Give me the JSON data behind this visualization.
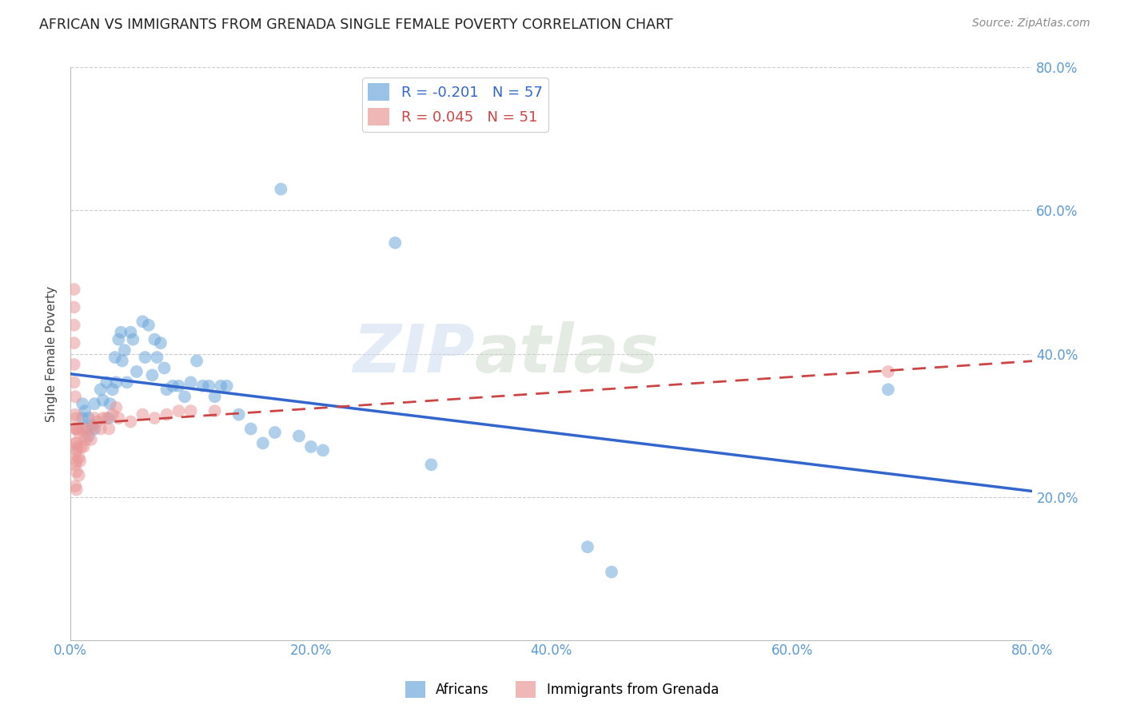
{
  "title": "AFRICAN VS IMMIGRANTS FROM GRENADA SINGLE FEMALE POVERTY CORRELATION CHART",
  "source": "Source: ZipAtlas.com",
  "ylabel": "Single Female Poverty",
  "xlim": [
    0.0,
    0.8
  ],
  "ylim": [
    0.0,
    0.8
  ],
  "xtick_labels": [
    "0.0%",
    "20.0%",
    "40.0%",
    "60.0%",
    "80.0%"
  ],
  "xtick_vals": [
    0.0,
    0.2,
    0.4,
    0.6,
    0.8
  ],
  "right_ytick_labels": [
    "80.0%",
    "60.0%",
    "40.0%",
    "20.0%"
  ],
  "right_ytick_vals": [
    0.8,
    0.6,
    0.4,
    0.2
  ],
  "watermark": "ZIPatlas",
  "legend_africans_R": "-0.201",
  "legend_africans_N": "57",
  "legend_grenada_R": "0.045",
  "legend_grenada_N": "51",
  "african_color": "#6fa8dc",
  "grenada_color": "#ea9999",
  "african_line_color": "#3366cc",
  "grenada_line_color": "#cc4444",
  "africans_x": [
    0.01,
    0.01,
    0.012,
    0.013,
    0.015,
    0.015,
    0.018,
    0.02,
    0.02,
    0.025,
    0.027,
    0.03,
    0.032,
    0.033,
    0.035,
    0.037,
    0.038,
    0.04,
    0.042,
    0.043,
    0.045,
    0.047,
    0.05,
    0.052,
    0.055,
    0.06,
    0.062,
    0.065,
    0.068,
    0.07,
    0.072,
    0.075,
    0.078,
    0.08,
    0.085,
    0.09,
    0.095,
    0.1,
    0.105,
    0.11,
    0.115,
    0.12,
    0.125,
    0.13,
    0.14,
    0.15,
    0.16,
    0.17,
    0.175,
    0.19,
    0.2,
    0.21,
    0.27,
    0.3,
    0.43,
    0.45,
    0.68
  ],
  "africans_y": [
    0.33,
    0.31,
    0.32,
    0.295,
    0.31,
    0.285,
    0.3,
    0.33,
    0.295,
    0.35,
    0.335,
    0.36,
    0.31,
    0.33,
    0.35,
    0.395,
    0.36,
    0.42,
    0.43,
    0.39,
    0.405,
    0.36,
    0.43,
    0.42,
    0.375,
    0.445,
    0.395,
    0.44,
    0.37,
    0.42,
    0.395,
    0.415,
    0.38,
    0.35,
    0.355,
    0.355,
    0.34,
    0.36,
    0.39,
    0.355,
    0.355,
    0.34,
    0.355,
    0.355,
    0.315,
    0.295,
    0.275,
    0.29,
    0.63,
    0.285,
    0.27,
    0.265,
    0.555,
    0.245,
    0.13,
    0.095,
    0.35
  ],
  "grenada_x": [
    0.003,
    0.003,
    0.003,
    0.003,
    0.003,
    0.003,
    0.004,
    0.004,
    0.004,
    0.004,
    0.004,
    0.004,
    0.004,
    0.005,
    0.005,
    0.005,
    0.005,
    0.005,
    0.005,
    0.005,
    0.006,
    0.006,
    0.007,
    0.007,
    0.007,
    0.008,
    0.009,
    0.01,
    0.011,
    0.012,
    0.013,
    0.015,
    0.017,
    0.018,
    0.02,
    0.022,
    0.025,
    0.027,
    0.03,
    0.032,
    0.035,
    0.038,
    0.04,
    0.05,
    0.06,
    0.07,
    0.08,
    0.09,
    0.1,
    0.12,
    0.68
  ],
  "grenada_y": [
    0.49,
    0.465,
    0.44,
    0.415,
    0.385,
    0.36,
    0.34,
    0.315,
    0.295,
    0.275,
    0.26,
    0.245,
    0.215,
    0.31,
    0.295,
    0.275,
    0.265,
    0.25,
    0.235,
    0.21,
    0.295,
    0.27,
    0.29,
    0.255,
    0.23,
    0.25,
    0.27,
    0.295,
    0.27,
    0.285,
    0.28,
    0.295,
    0.28,
    0.295,
    0.31,
    0.305,
    0.295,
    0.31,
    0.31,
    0.295,
    0.315,
    0.325,
    0.31,
    0.305,
    0.315,
    0.31,
    0.315,
    0.32,
    0.32,
    0.32,
    0.375
  ]
}
